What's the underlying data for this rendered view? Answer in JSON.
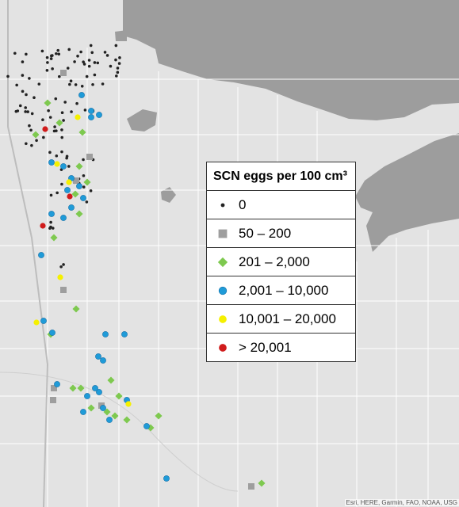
{
  "legend": {
    "title": "SCN eggs per 100 cm³",
    "items": [
      {
        "label": "0",
        "color": "#222222"
      },
      {
        "label": "50 – 200",
        "color": "#9e9e9e"
      },
      {
        "label": "201 – 2,000",
        "color": "#7ec94f"
      },
      {
        "label": "2,001 – 10,000",
        "color": "#1f9bd8"
      },
      {
        "label": "10,001 – 20,000",
        "color": "#f5f000"
      },
      {
        "label": "> 20,001",
        "color": "#d01c1c"
      }
    ]
  },
  "attribution": "Esri, HERE, Garmin, FAO, NOAA, USG"
}
